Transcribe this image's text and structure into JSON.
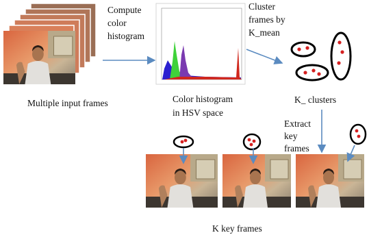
{
  "steps": [
    {
      "lines": [
        "Compute",
        "color",
        "histogram"
      ]
    },
    {
      "lines": [
        "Cluster",
        "frames by",
        "K_mean"
      ]
    },
    {
      "lines": [
        "Extract",
        "key",
        "frames"
      ]
    }
  ],
  "captions": {
    "input": "Multiple input frames",
    "histogram": [
      "Color histogram",
      "in HSV space"
    ],
    "clusters": "K_ clusters",
    "output": "K key frames"
  }
}
